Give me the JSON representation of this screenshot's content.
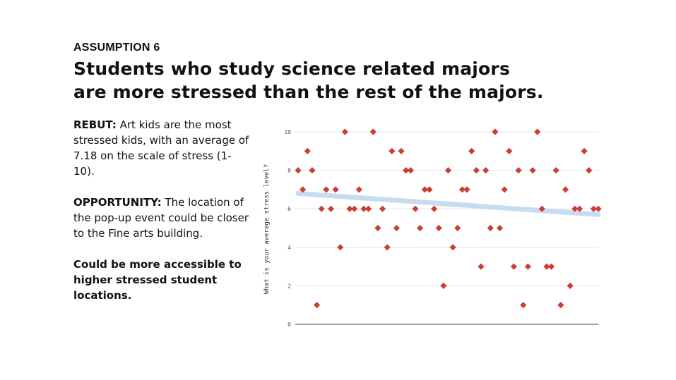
{
  "header": {
    "kicker": "ASSUMPTION 6",
    "title_line1": "Students who study science related majors",
    "title_line2": "are more stressed than the rest of the majors."
  },
  "rebut": {
    "label": "REBUT:",
    "text": " Art kids are the most stressed kids, with an average of 7.18 on the scale of stress (1-10)."
  },
  "opportunity": {
    "label": "OPPORTUNITY:",
    "text": " The location of the pop-up event could be closer to the Fine arts building."
  },
  "closing": "Could be more accessible to higher stressed student locations.",
  "chart_data": {
    "type": "scatter",
    "ylabel": "What is your average stress level?",
    "xlabel": "",
    "ylim": [
      0,
      10
    ],
    "yticks": [
      0,
      2,
      4,
      6,
      8,
      10
    ],
    "xlim": [
      0,
      64
    ],
    "grid": true,
    "marker_color": "#cc3e33",
    "trend_color": "#c7dcef",
    "trendline": {
      "x": [
        0,
        64
      ],
      "y": [
        6.8,
        5.7
      ]
    },
    "x": [
      0,
      1,
      2,
      3,
      4,
      5,
      6,
      7,
      8,
      9,
      10,
      11,
      12,
      13,
      14,
      15,
      16,
      17,
      18,
      19,
      20,
      21,
      22,
      23,
      24,
      25,
      26,
      27,
      28,
      29,
      30,
      31,
      32,
      33,
      34,
      35,
      36,
      37,
      38,
      39,
      40,
      41,
      42,
      43,
      44,
      45,
      46,
      47,
      48,
      49,
      50,
      51,
      52,
      53,
      54,
      55,
      56,
      57,
      58,
      59,
      60,
      61,
      62,
      63,
      64
    ],
    "y": [
      8,
      7,
      9,
      8,
      1,
      6,
      7,
      6,
      7,
      4,
      10,
      6,
      6,
      7,
      6,
      6,
      10,
      5,
      6,
      4,
      9,
      5,
      9,
      8,
      8,
      6,
      5,
      7,
      7,
      6,
      5,
      2,
      8,
      4,
      5,
      7,
      7,
      9,
      8,
      3,
      8,
      5,
      10,
      5,
      7,
      9,
      3,
      8,
      1,
      3,
      8,
      10,
      6,
      3,
      3,
      8,
      1,
      7,
      2,
      6,
      6,
      9,
      8,
      6,
      6
    ]
  }
}
